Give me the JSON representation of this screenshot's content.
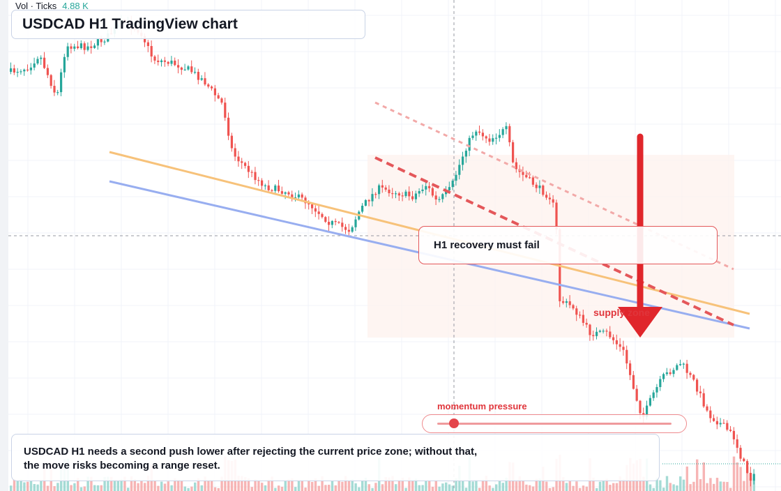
{
  "header": {
    "vol_label": "Vol · Ticks",
    "vol_value": "4.88 K",
    "title": "USDCAD H1 TradingView chart"
  },
  "annotations": {
    "thesis": "H1 recovery must fail",
    "zone_label": "supply zone",
    "momentum_label": "momentum pressure",
    "momentum_level": 0.07,
    "note_line1": "USDCAD H1 needs a second push lower after rejecting the current price zone; without that,",
    "note_line2": "the move risks becoming a range reset."
  },
  "colors": {
    "up": "#26a69a",
    "down": "#ef5350",
    "volume_up": "#8fd2cb",
    "volume_down": "#f5a3a3",
    "trend_orange": "#f7c27a",
    "trend_blue": "#98aef0",
    "channel_red": "#e4575a",
    "arrow": "#e0262b",
    "zone_fill": "#fdf1ee"
  }
}
